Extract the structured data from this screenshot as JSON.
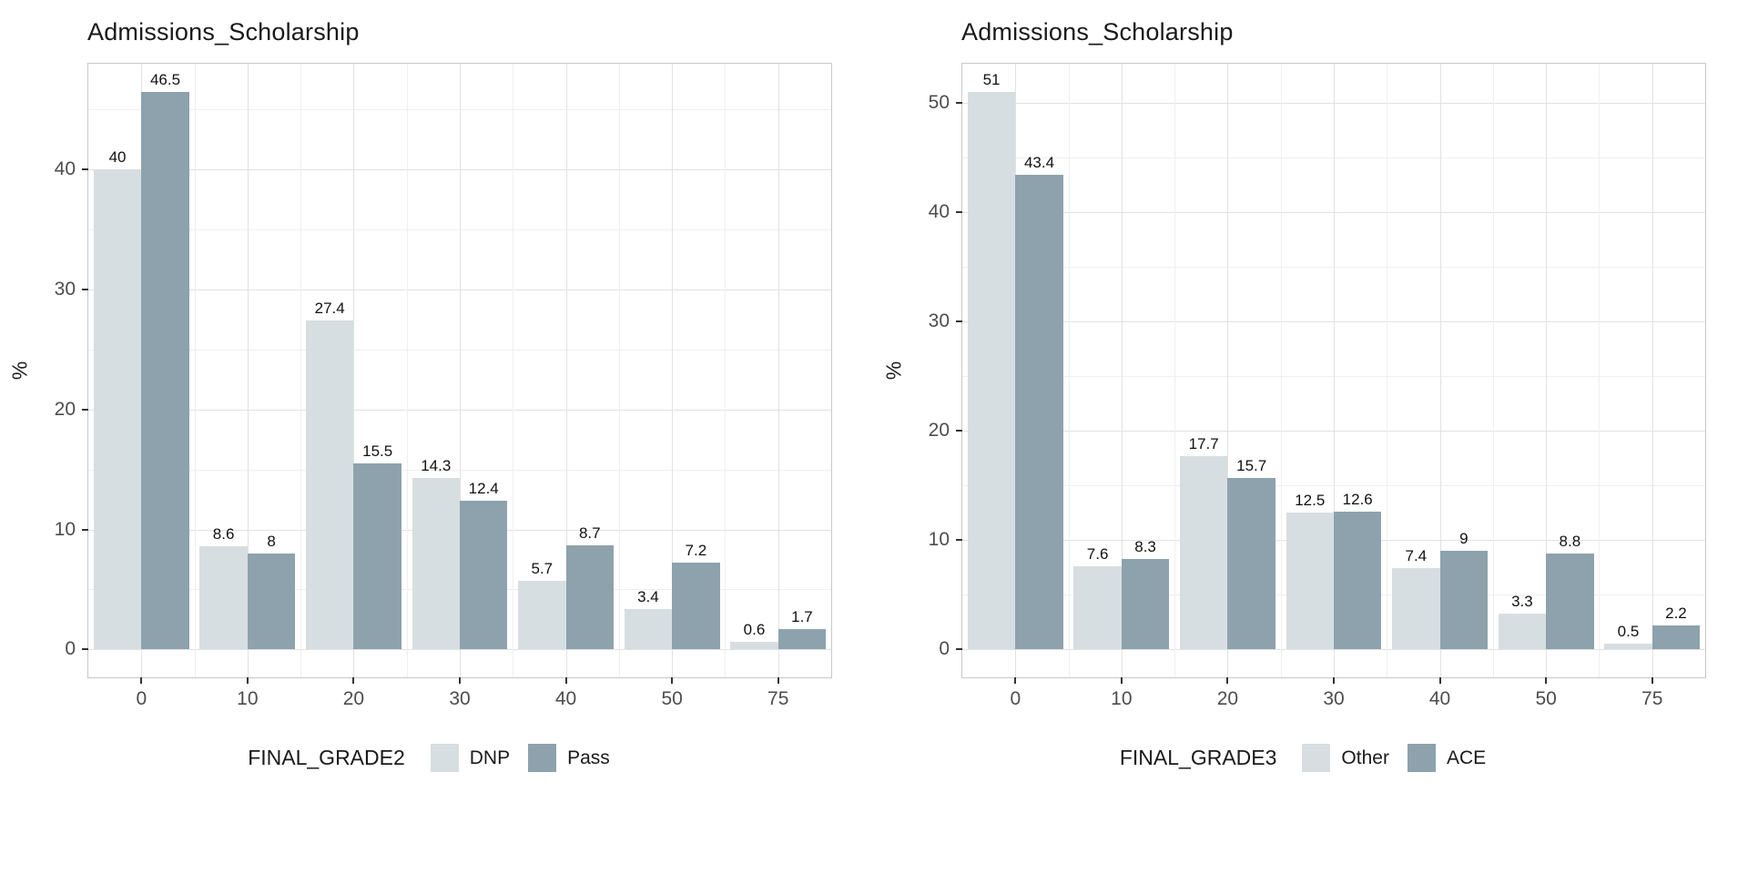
{
  "page": {
    "background": "#ffffff"
  },
  "colors": {
    "grid_major": "#e2e2e2",
    "grid_minor": "#efefef",
    "panel_border": "#c8c8c8",
    "axis_text": "#4d4d4d",
    "title_text": "#1a1a1a",
    "tick_mark": "#333333"
  },
  "chart_data": [
    {
      "type": "bar",
      "title": "Admissions_Scholarship",
      "xlabel": "",
      "ylabel": "%",
      "categories": [
        "0",
        "10",
        "20",
        "30",
        "40",
        "50",
        "75"
      ],
      "series": [
        {
          "name": "DNP",
          "color": "#d7dee2",
          "values": [
            40,
            8.6,
            27.4,
            14.3,
            5.7,
            3.4,
            0.6
          ]
        },
        {
          "name": "Pass",
          "color": "#8da2ac",
          "values": [
            46.5,
            8,
            15.5,
            12.4,
            8.7,
            7.2,
            1.7
          ]
        }
      ],
      "yticks": [
        0,
        10,
        20,
        30,
        40
      ],
      "ylim": [
        -2.33,
        48.83
      ],
      "grid": true,
      "legend_title": "FINAL_GRADE2",
      "legend_position": "bottom"
    },
    {
      "type": "bar",
      "title": "Admissions_Scholarship",
      "xlabel": "",
      "ylabel": "%",
      "categories": [
        "0",
        "10",
        "20",
        "30",
        "40",
        "50",
        "75"
      ],
      "series": [
        {
          "name": "Other",
          "color": "#d7dee2",
          "values": [
            51,
            7.6,
            17.7,
            12.5,
            7.4,
            3.3,
            0.5
          ]
        },
        {
          "name": "ACE",
          "color": "#8da2ac",
          "values": [
            43.4,
            8.3,
            15.7,
            12.6,
            9,
            8.8,
            2.2
          ]
        }
      ],
      "yticks": [
        0,
        10,
        20,
        30,
        40,
        50
      ],
      "ylim": [
        -2.55,
        53.55
      ],
      "grid": true,
      "legend_title": "FINAL_GRADE3",
      "legend_position": "bottom"
    }
  ]
}
